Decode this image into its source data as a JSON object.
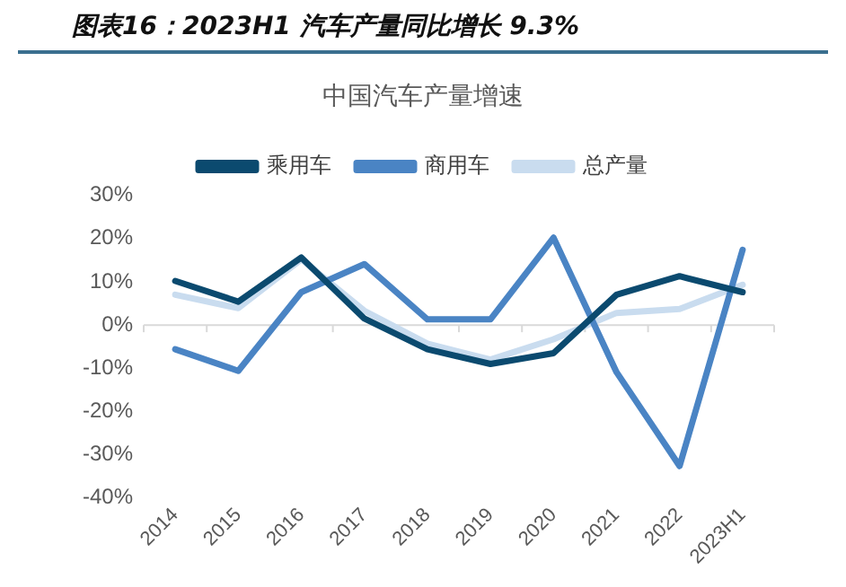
{
  "chart_data": {
    "type": "line",
    "title": "图表16：2023H1 汽车产量同比增长 9.3%",
    "subtitle": "中国汽车产量增速",
    "categories": [
      "2014",
      "2015",
      "2016",
      "2017",
      "2018",
      "2019",
      "2020",
      "2021",
      "2022",
      "2023H1"
    ],
    "series": [
      {
        "name": "乘用车",
        "color": "#0b4a6f",
        "values": [
          10.2,
          5.4,
          15.6,
          1.5,
          -5.6,
          -9,
          -6.5,
          7,
          11.3,
          7.6
        ]
      },
      {
        "name": "商用车",
        "color": "#4a84c4",
        "values": [
          -5.6,
          -10.6,
          7.6,
          14.1,
          1.3,
          1.3,
          20.2,
          -10.9,
          -32.6,
          17.4
        ]
      },
      {
        "name": "总产量",
        "color": "#c9dcef",
        "values": [
          7,
          3.9,
          15.2,
          3.3,
          -4.3,
          -8,
          -3.3,
          2.8,
          3.7,
          9.3
        ]
      }
    ],
    "ylim": [
      -40,
      30
    ],
    "yticks": [
      {
        "value": -40,
        "label": "-40%"
      },
      {
        "value": -30,
        "label": "-30%"
      },
      {
        "value": -20,
        "label": "-20%"
      },
      {
        "value": -10,
        "label": "-10%"
      },
      {
        "value": 0,
        "label": "0%"
      },
      {
        "value": 10,
        "label": "10%"
      },
      {
        "value": 20,
        "label": "20%"
      },
      {
        "value": 30,
        "label": "30%"
      }
    ],
    "ref_lines": [
      {
        "axis": "y",
        "value": 0,
        "color": "#d9d9d9"
      }
    ],
    "grid": false,
    "legend": "top",
    "marker": "none",
    "line_style": "solid"
  }
}
